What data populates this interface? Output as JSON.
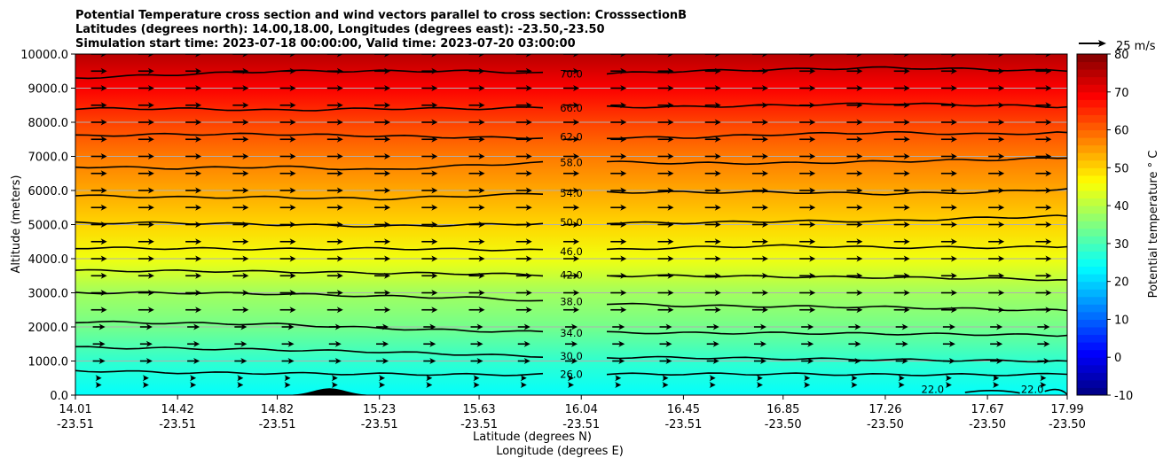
{
  "chart_data": {
    "type": "contour-cross-section",
    "title_lines": [
      "Potential Temperature cross section and wind vectors parallel to cross section: CrosssectionB",
      "Latitudes (degrees north): 14.00,18.00, Longitudes (degrees east): -23.50,-23.50",
      "Simulation start time: 2023-07-18 00:00:00, Valid time: 2023-07-20 03:00:00"
    ],
    "xlabel_lines": [
      "Latitude (degrees N)",
      "Longitude (degrees E)"
    ],
    "ylabel": "Altitude (meters)",
    "colorbar_label": "Potential temperature $^\\circ$C",
    "colorbar_label_text": "Potential temperature ° C",
    "colorbar_range": [
      -10,
      80
    ],
    "colorbar_ticks": [
      "-10",
      "0",
      "10",
      "20",
      "30",
      "40",
      "50",
      "60",
      "70",
      "80"
    ],
    "colormap": "jet",
    "ylim": [
      0,
      10000
    ],
    "yticks": [
      {
        "value": 0,
        "label": "0.0"
      },
      {
        "value": 1000,
        "label": "1000.0"
      },
      {
        "value": 2000,
        "label": "2000.0"
      },
      {
        "value": 3000,
        "label": "3000.0"
      },
      {
        "value": 4000,
        "label": "4000.0"
      },
      {
        "value": 5000,
        "label": "5000.0"
      },
      {
        "value": 6000,
        "label": "6000.0"
      },
      {
        "value": 7000,
        "label": "7000.0"
      },
      {
        "value": 8000,
        "label": "8000.0"
      },
      {
        "value": 9000,
        "label": "9000.0"
      },
      {
        "value": 10000,
        "label": "10000.0"
      }
    ],
    "xlim": [
      14.01,
      17.99
    ],
    "xticks": [
      {
        "lat": 14.01,
        "lat_label": "14.01",
        "lon_label": "-23.51"
      },
      {
        "lat": 14.42,
        "lat_label": "14.42",
        "lon_label": "-23.51"
      },
      {
        "lat": 14.82,
        "lat_label": "14.82",
        "lon_label": "-23.51"
      },
      {
        "lat": 15.23,
        "lat_label": "15.23",
        "lon_label": "-23.51"
      },
      {
        "lat": 15.63,
        "lat_label": "15.63",
        "lon_label": "-23.51"
      },
      {
        "lat": 16.04,
        "lat_label": "16.04",
        "lon_label": "-23.51"
      },
      {
        "lat": 16.45,
        "lat_label": "16.45",
        "lon_label": "-23.51"
      },
      {
        "lat": 16.85,
        "lat_label": "16.85",
        "lon_label": "-23.50"
      },
      {
        "lat": 17.26,
        "lat_label": "17.26",
        "lon_label": "-23.50"
      },
      {
        "lat": 17.67,
        "lat_label": "17.67",
        "lon_label": "-23.50"
      },
      {
        "lat": 17.99,
        "lat_label": "17.99",
        "lon_label": "-23.50"
      }
    ],
    "contours": [
      {
        "level": 26,
        "label": "26.0",
        "alts": [
          720,
          660,
          640,
          620,
          600,
          610,
          620,
          620,
          600,
          600,
          610
        ]
      },
      {
        "level": 30,
        "label": "30.0",
        "alts": [
          1400,
          1370,
          1330,
          1270,
          1180,
          1110,
          1100,
          1070,
          1040,
          1010,
          1000
        ]
      },
      {
        "level": 34,
        "label": "34.0",
        "alts": [
          2150,
          2110,
          2080,
          1960,
          1880,
          1840,
          1820,
          1820,
          1800,
          1780,
          1750
        ]
      },
      {
        "level": 38,
        "label": "38.0",
        "alts": [
          3000,
          3000,
          2970,
          2900,
          2850,
          2700,
          2620,
          2600,
          2580,
          2520,
          2480
        ]
      },
      {
        "level": 42,
        "label": "42.0",
        "alts": [
          3650,
          3640,
          3620,
          3580,
          3560,
          3500,
          3500,
          3470,
          3450,
          3420,
          3380
        ]
      },
      {
        "level": 46,
        "label": "46.0",
        "alts": [
          4320,
          4300,
          4280,
          4300,
          4270,
          4230,
          4330,
          4380,
          4330,
          4330,
          4350
        ]
      },
      {
        "level": 50,
        "label": "50.0",
        "alts": [
          5050,
          5050,
          5000,
          4950,
          5000,
          5050,
          5050,
          5100,
          5100,
          5200,
          5250
        ]
      },
      {
        "level": 54,
        "label": "54.0",
        "alts": [
          5850,
          5800,
          5800,
          5750,
          5850,
          5950,
          5950,
          5950,
          5900,
          5950,
          6050
        ]
      },
      {
        "level": 58,
        "label": "58.0",
        "alts": [
          6700,
          6650,
          6700,
          6600,
          6750,
          6850,
          6800,
          6800,
          6850,
          6900,
          6950
        ]
      },
      {
        "level": 62,
        "label": "62.0",
        "alts": [
          7600,
          7650,
          7650,
          7600,
          7550,
          7550,
          7550,
          7650,
          7700,
          7650,
          7700
        ]
      },
      {
        "level": 66,
        "label": "66.0",
        "alts": [
          8400,
          8400,
          8350,
          8400,
          8400,
          8450,
          8450,
          8500,
          8550,
          8500,
          8450
        ]
      },
      {
        "level": 70,
        "label": "70.0",
        "alts": [
          9300,
          9400,
          9500,
          9500,
          9500,
          9400,
          9500,
          9550,
          9600,
          9550,
          9500
        ]
      }
    ],
    "surface_contour": {
      "level": 22,
      "label": "22.0",
      "label_lats": [
        17.45,
        17.85
      ]
    },
    "terrain": {
      "peak_lat": 15.03,
      "peak_alt": 200,
      "half_width_lat": 0.12
    },
    "wind_vectors": {
      "direction": "parallel to cross section, northward (left to right)",
      "rows_alt_m": [
        300,
        500,
        1000,
        1500,
        2000,
        2500,
        3000,
        3500,
        4000,
        4500,
        5000,
        5500,
        6000,
        6500,
        7000,
        7500,
        8000,
        8500,
        9000,
        9500,
        10000
      ],
      "key_label": "25 m/s"
    },
    "background_fill_by_altitude_degC": [
      {
        "alt": 0,
        "theta": 24
      },
      {
        "alt": 1000,
        "theta": 28
      },
      {
        "alt": 2000,
        "theta": 34
      },
      {
        "alt": 3000,
        "theta": 38
      },
      {
        "alt": 4000,
        "theta": 45
      },
      {
        "alt": 5000,
        "theta": 50
      },
      {
        "alt": 6000,
        "theta": 54
      },
      {
        "alt": 7000,
        "theta": 58
      },
      {
        "alt": 8000,
        "theta": 63
      },
      {
        "alt": 9000,
        "theta": 69
      },
      {
        "alt": 10000,
        "theta": 75
      }
    ]
  }
}
